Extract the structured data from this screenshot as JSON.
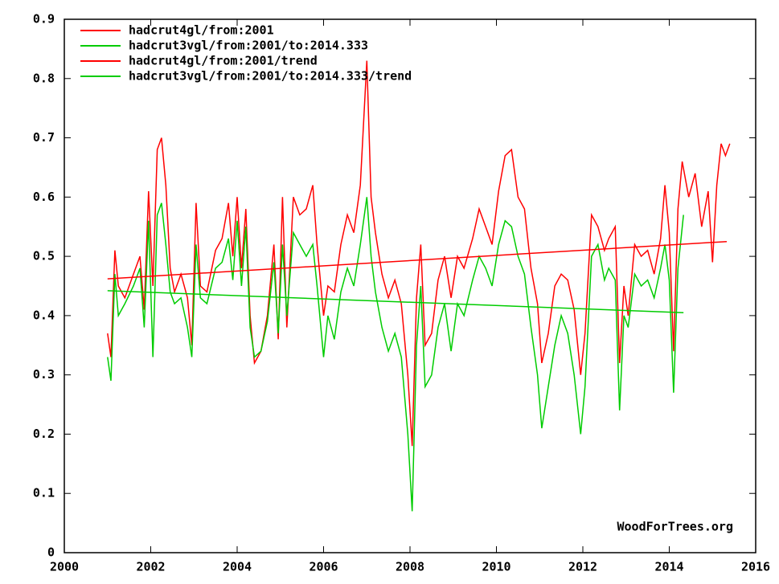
{
  "chart_data": {
    "type": "line",
    "annotation": "WoodForTrees.org",
    "xlim": [
      2000,
      2016
    ],
    "xticks": [
      2000,
      2002,
      2004,
      2006,
      2008,
      2010,
      2012,
      2014,
      2016
    ],
    "ylim": [
      0,
      0.9
    ],
    "yticks": [
      0,
      0.1,
      0.2,
      0.3,
      0.4,
      0.5,
      0.6,
      0.7,
      0.8,
      0.9
    ],
    "series": [
      {
        "name": "hadcrut4gl/from:2001",
        "color": "#ff0000",
        "x": [
          2001.0,
          2001.08,
          2001.17,
          2001.25,
          2001.4,
          2001.6,
          2001.75,
          2001.85,
          2001.95,
          2002.05,
          2002.15,
          2002.25,
          2002.35,
          2002.45,
          2002.55,
          2002.7,
          2002.85,
          2002.95,
          2003.05,
          2003.15,
          2003.3,
          2003.5,
          2003.65,
          2003.8,
          2003.9,
          2004.0,
          2004.1,
          2004.2,
          2004.3,
          2004.4,
          2004.55,
          2004.7,
          2004.85,
          2004.95,
          2005.05,
          2005.15,
          2005.3,
          2005.45,
          2005.6,
          2005.75,
          2005.85,
          2006.0,
          2006.1,
          2006.25,
          2006.4,
          2006.55,
          2006.7,
          2006.85,
          2007.0,
          2007.1,
          2007.2,
          2007.35,
          2007.5,
          2007.65,
          2007.8,
          2007.95,
          2008.05,
          2008.15,
          2008.25,
          2008.35,
          2008.5,
          2008.65,
          2008.8,
          2008.95,
          2009.1,
          2009.25,
          2009.45,
          2009.6,
          2009.75,
          2009.9,
          2010.05,
          2010.2,
          2010.35,
          2010.5,
          2010.65,
          2010.8,
          2010.95,
          2011.05,
          2011.2,
          2011.35,
          2011.5,
          2011.65,
          2011.8,
          2011.95,
          2012.05,
          2012.2,
          2012.35,
          2012.5,
          2012.6,
          2012.75,
          2012.85,
          2012.95,
          2013.05,
          2013.2,
          2013.35,
          2013.5,
          2013.65,
          2013.8,
          2013.9,
          2014.0,
          2014.1,
          2014.2,
          2014.3,
          2014.45,
          2014.6,
          2014.75,
          2014.9,
          2015.0,
          2015.1,
          2015.2,
          2015.3,
          2015.4
        ],
        "values": [
          0.37,
          0.33,
          0.51,
          0.45,
          0.43,
          0.47,
          0.5,
          0.41,
          0.61,
          0.45,
          0.68,
          0.7,
          0.62,
          0.48,
          0.44,
          0.47,
          0.43,
          0.35,
          0.59,
          0.45,
          0.44,
          0.51,
          0.53,
          0.59,
          0.5,
          0.6,
          0.48,
          0.58,
          0.4,
          0.32,
          0.34,
          0.4,
          0.52,
          0.36,
          0.6,
          0.38,
          0.6,
          0.57,
          0.58,
          0.62,
          0.52,
          0.4,
          0.45,
          0.44,
          0.52,
          0.57,
          0.54,
          0.62,
          0.83,
          0.6,
          0.54,
          0.47,
          0.43,
          0.46,
          0.42,
          0.3,
          0.18,
          0.43,
          0.52,
          0.35,
          0.37,
          0.46,
          0.5,
          0.43,
          0.5,
          0.48,
          0.53,
          0.58,
          0.55,
          0.52,
          0.61,
          0.67,
          0.68,
          0.6,
          0.58,
          0.48,
          0.42,
          0.32,
          0.37,
          0.45,
          0.47,
          0.46,
          0.41,
          0.3,
          0.37,
          0.57,
          0.55,
          0.51,
          0.53,
          0.55,
          0.32,
          0.45,
          0.4,
          0.52,
          0.5,
          0.51,
          0.47,
          0.53,
          0.62,
          0.54,
          0.34,
          0.58,
          0.66,
          0.6,
          0.64,
          0.55,
          0.61,
          0.49,
          0.62,
          0.69,
          0.67,
          0.69
        ]
      },
      {
        "name": "hadcrut3vgl/from:2001/to:2014.333",
        "color": "#00cc00",
        "x": [
          2001.0,
          2001.08,
          2001.17,
          2001.25,
          2001.4,
          2001.6,
          2001.75,
          2001.85,
          2001.95,
          2002.05,
          2002.15,
          2002.25,
          2002.35,
          2002.45,
          2002.55,
          2002.7,
          2002.85,
          2002.95,
          2003.05,
          2003.15,
          2003.3,
          2003.5,
          2003.65,
          2003.8,
          2003.9,
          2004.0,
          2004.1,
          2004.2,
          2004.3,
          2004.4,
          2004.55,
          2004.7,
          2004.85,
          2004.95,
          2005.05,
          2005.15,
          2005.3,
          2005.45,
          2005.6,
          2005.75,
          2005.85,
          2006.0,
          2006.1,
          2006.25,
          2006.4,
          2006.55,
          2006.7,
          2006.85,
          2007.0,
          2007.1,
          2007.2,
          2007.35,
          2007.5,
          2007.65,
          2007.8,
          2007.95,
          2008.05,
          2008.15,
          2008.25,
          2008.35,
          2008.5,
          2008.65,
          2008.8,
          2008.95,
          2009.1,
          2009.25,
          2009.45,
          2009.6,
          2009.75,
          2009.9,
          2010.05,
          2010.2,
          2010.35,
          2010.5,
          2010.65,
          2010.8,
          2010.95,
          2011.05,
          2011.2,
          2011.35,
          2011.5,
          2011.65,
          2011.8,
          2011.95,
          2012.05,
          2012.2,
          2012.35,
          2012.5,
          2012.6,
          2012.75,
          2012.85,
          2012.95,
          2013.05,
          2013.2,
          2013.35,
          2013.5,
          2013.65,
          2013.8,
          2013.9,
          2014.0,
          2014.1,
          2014.2,
          2014.33
        ],
        "values": [
          0.33,
          0.29,
          0.47,
          0.4,
          0.42,
          0.45,
          0.48,
          0.38,
          0.56,
          0.33,
          0.57,
          0.59,
          0.52,
          0.44,
          0.42,
          0.43,
          0.38,
          0.33,
          0.52,
          0.43,
          0.42,
          0.48,
          0.49,
          0.53,
          0.46,
          0.56,
          0.45,
          0.55,
          0.38,
          0.33,
          0.34,
          0.39,
          0.49,
          0.37,
          0.52,
          0.4,
          0.54,
          0.52,
          0.5,
          0.52,
          0.45,
          0.33,
          0.4,
          0.36,
          0.44,
          0.48,
          0.45,
          0.52,
          0.6,
          0.5,
          0.44,
          0.38,
          0.34,
          0.37,
          0.33,
          0.2,
          0.07,
          0.35,
          0.45,
          0.28,
          0.3,
          0.38,
          0.42,
          0.34,
          0.42,
          0.4,
          0.46,
          0.5,
          0.48,
          0.45,
          0.52,
          0.56,
          0.55,
          0.5,
          0.47,
          0.38,
          0.3,
          0.21,
          0.28,
          0.35,
          0.4,
          0.37,
          0.3,
          0.2,
          0.28,
          0.5,
          0.52,
          0.46,
          0.48,
          0.46,
          0.24,
          0.4,
          0.38,
          0.47,
          0.45,
          0.46,
          0.43,
          0.48,
          0.52,
          0.46,
          0.27,
          0.48,
          0.57
        ]
      },
      {
        "name": "hadcrut4gl/from:2001/trend",
        "color": "#ff0000",
        "x": [
          2001.0,
          2015.33
        ],
        "values": [
          0.462,
          0.525
        ]
      },
      {
        "name": "hadcrut3vgl/from:2001/to:2014.333/trend",
        "color": "#00cc00",
        "x": [
          2001.0,
          2014.33
        ],
        "values": [
          0.442,
          0.405
        ]
      }
    ]
  }
}
